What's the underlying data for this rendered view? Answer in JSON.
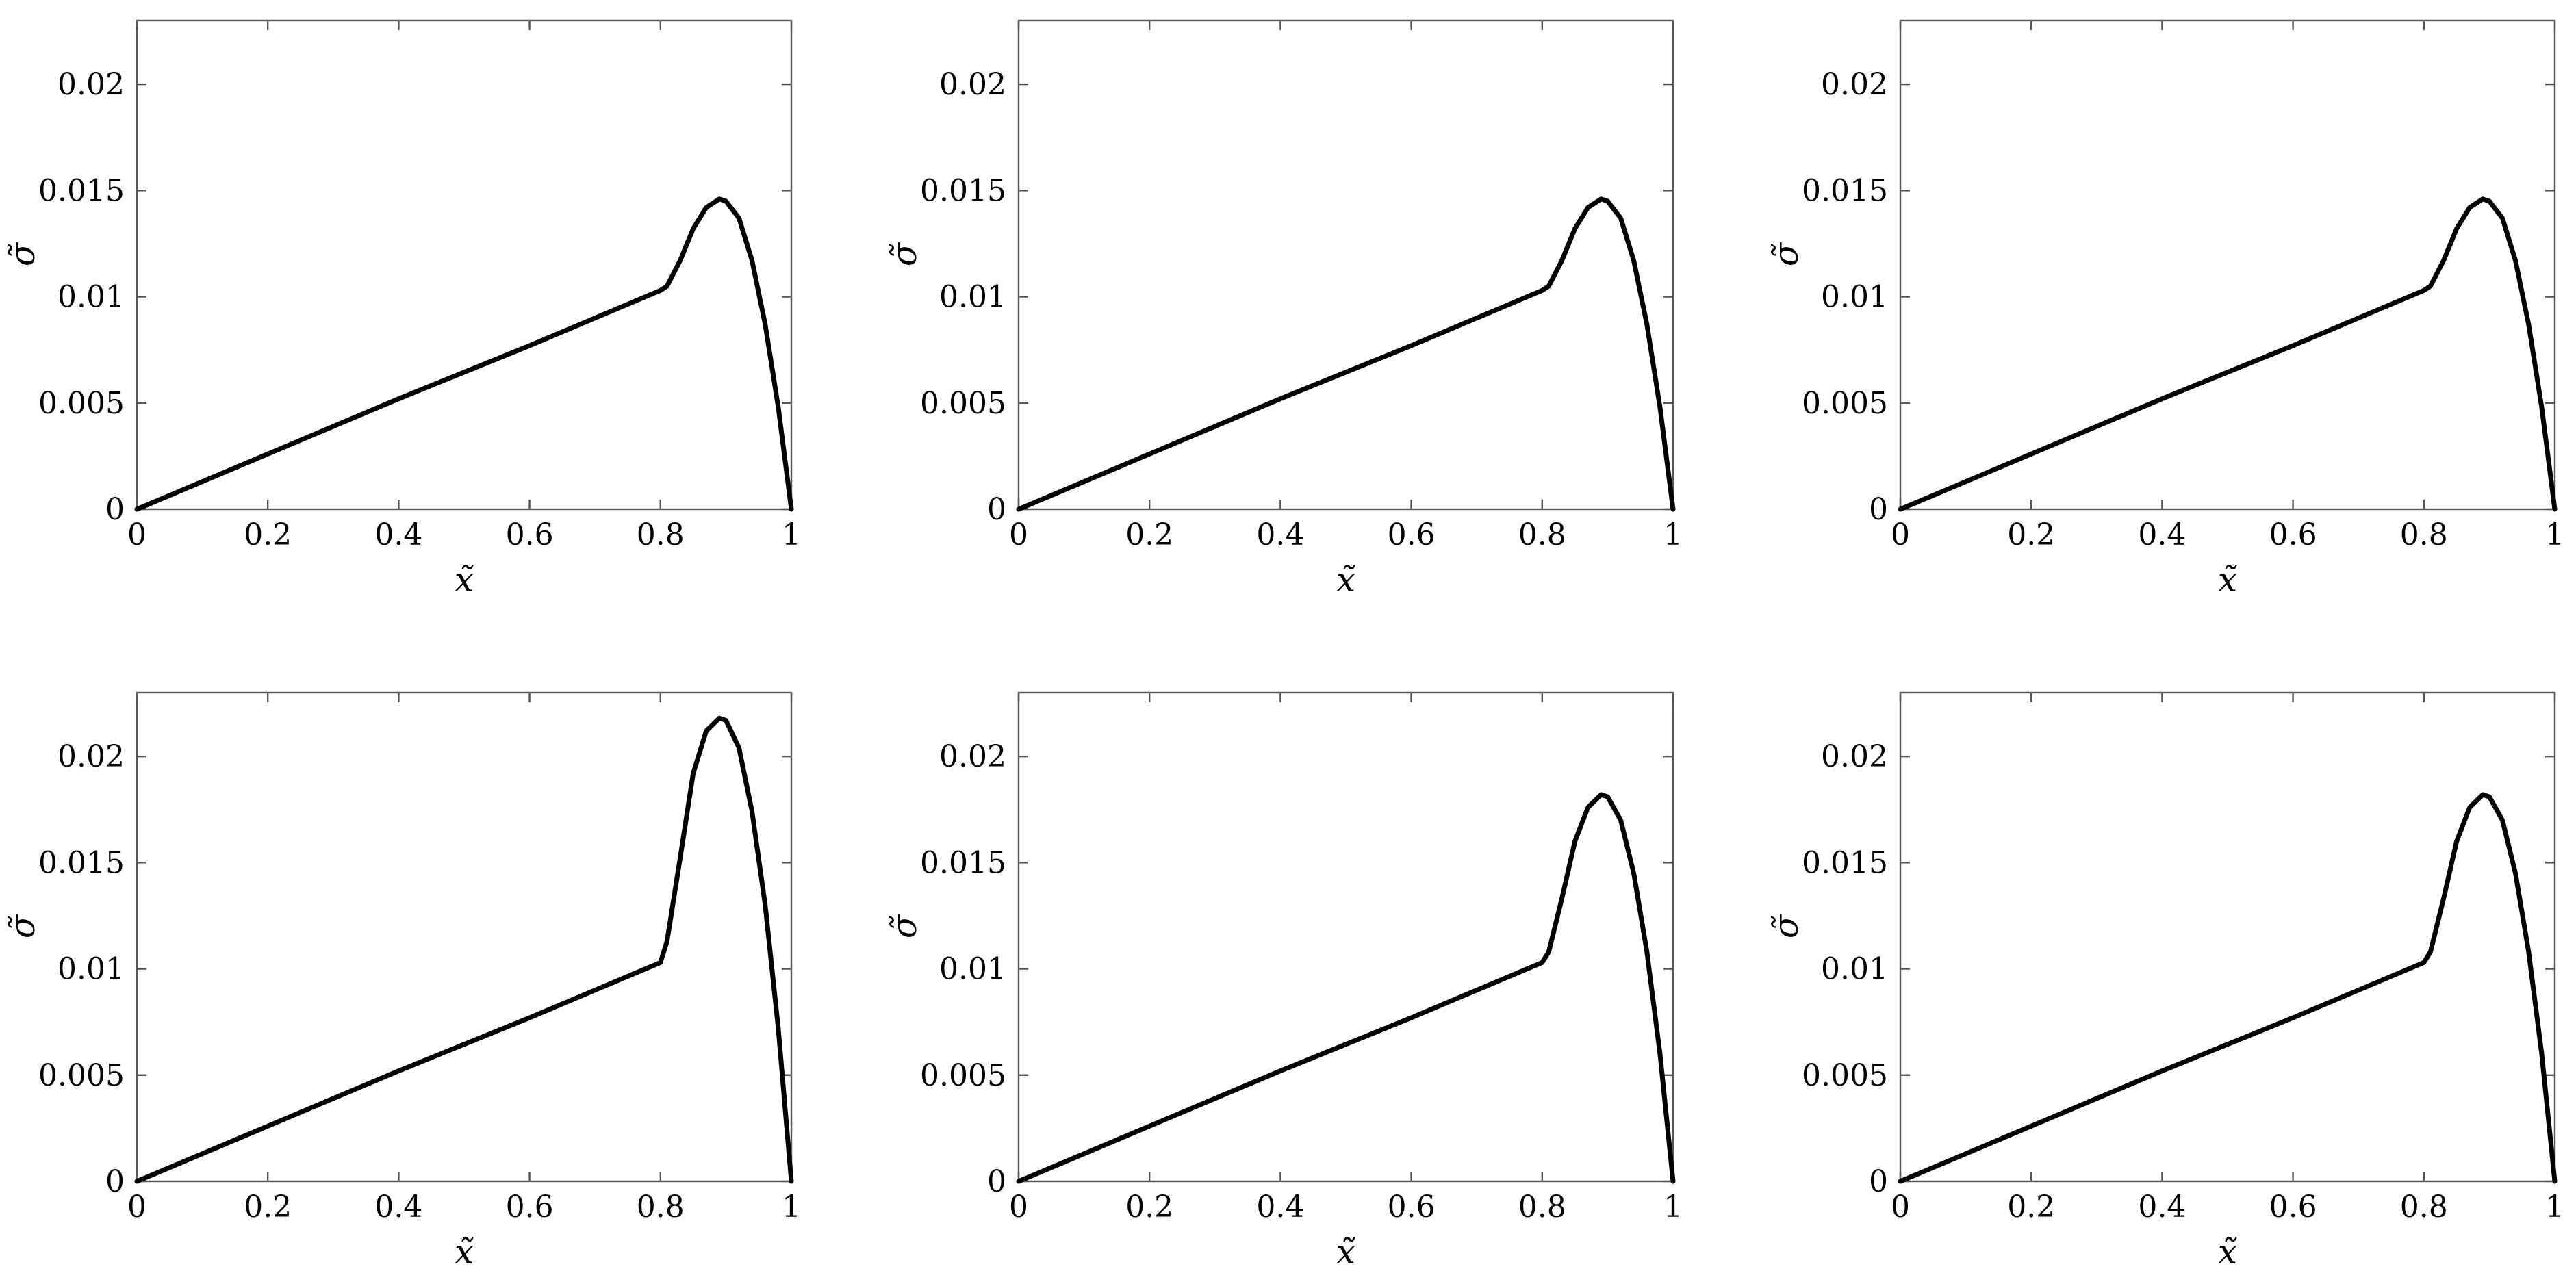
{
  "chart_data": [
    {
      "type": "line",
      "xlabel": "x̃",
      "ylabel": "σ̃",
      "xlim": [
        0,
        1
      ],
      "ylim": [
        0,
        0.023
      ],
      "xticks": [
        "0",
        "0.2",
        "0.4",
        "0.6",
        "0.8",
        "1"
      ],
      "yticks": [
        "0",
        "0.005",
        "0.01",
        "0.015",
        "0.02"
      ],
      "grid": false,
      "series": [
        {
          "x": [
            0,
            0.2,
            0.4,
            0.6,
            0.8,
            0.81,
            0.83,
            0.85,
            0.87,
            0.89,
            0.9,
            0.92,
            0.94,
            0.96,
            0.98,
            1.0
          ],
          "y": [
            0,
            0.0026,
            0.0052,
            0.0077,
            0.0103,
            0.0105,
            0.0117,
            0.0132,
            0.0142,
            0.0146,
            0.0145,
            0.0137,
            0.0117,
            0.0087,
            0.0048,
            0
          ]
        }
      ]
    },
    {
      "type": "line",
      "xlabel": "x̃",
      "ylabel": "σ̃",
      "xlim": [
        0,
        1
      ],
      "ylim": [
        0,
        0.023
      ],
      "xticks": [
        "0",
        "0.2",
        "0.4",
        "0.6",
        "0.8",
        "1"
      ],
      "yticks": [
        "0",
        "0.005",
        "0.01",
        "0.015",
        "0.02"
      ],
      "grid": false,
      "series": [
        {
          "x": [
            0,
            0.2,
            0.4,
            0.6,
            0.8,
            0.81,
            0.83,
            0.85,
            0.87,
            0.89,
            0.9,
            0.92,
            0.94,
            0.96,
            0.98,
            1.0
          ],
          "y": [
            0,
            0.0026,
            0.0052,
            0.0077,
            0.0103,
            0.0105,
            0.0117,
            0.0132,
            0.0142,
            0.0146,
            0.0145,
            0.0137,
            0.0117,
            0.0087,
            0.0048,
            0
          ]
        }
      ]
    },
    {
      "type": "line",
      "xlabel": "x̃",
      "ylabel": "σ̃",
      "xlim": [
        0,
        1
      ],
      "ylim": [
        0,
        0.023
      ],
      "xticks": [
        "0",
        "0.2",
        "0.4",
        "0.6",
        "0.8",
        "1"
      ],
      "yticks": [
        "0",
        "0.005",
        "0.01",
        "0.015",
        "0.02"
      ],
      "grid": false,
      "series": [
        {
          "x": [
            0,
            0.2,
            0.4,
            0.6,
            0.8,
            0.81,
            0.83,
            0.85,
            0.87,
            0.89,
            0.9,
            0.92,
            0.94,
            0.96,
            0.98,
            1.0
          ],
          "y": [
            0,
            0.0026,
            0.0052,
            0.0077,
            0.0103,
            0.0105,
            0.0117,
            0.0132,
            0.0142,
            0.0146,
            0.0145,
            0.0137,
            0.0117,
            0.0087,
            0.0048,
            0
          ]
        }
      ]
    },
    {
      "type": "line",
      "xlabel": "x̃",
      "ylabel": "σ̃",
      "xlim": [
        0,
        1
      ],
      "ylim": [
        0,
        0.023
      ],
      "xticks": [
        "0",
        "0.2",
        "0.4",
        "0.6",
        "0.8",
        "1"
      ],
      "yticks": [
        "0",
        "0.005",
        "0.01",
        "0.015",
        "0.02"
      ],
      "grid": false,
      "series": [
        {
          "x": [
            0,
            0.2,
            0.4,
            0.6,
            0.8,
            0.81,
            0.83,
            0.85,
            0.87,
            0.89,
            0.9,
            0.92,
            0.94,
            0.96,
            0.98,
            1.0
          ],
          "y": [
            0,
            0.0026,
            0.0052,
            0.0077,
            0.0103,
            0.0113,
            0.0152,
            0.0192,
            0.0212,
            0.0218,
            0.0217,
            0.0204,
            0.0174,
            0.013,
            0.0072,
            0
          ]
        }
      ]
    },
    {
      "type": "line",
      "xlabel": "x̃",
      "ylabel": "σ̃",
      "xlim": [
        0,
        1
      ],
      "ylim": [
        0,
        0.023
      ],
      "xticks": [
        "0",
        "0.2",
        "0.4",
        "0.6",
        "0.8",
        "1"
      ],
      "yticks": [
        "0",
        "0.005",
        "0.01",
        "0.015",
        "0.02"
      ],
      "grid": false,
      "series": [
        {
          "x": [
            0,
            0.2,
            0.4,
            0.6,
            0.8,
            0.81,
            0.83,
            0.85,
            0.87,
            0.89,
            0.9,
            0.92,
            0.94,
            0.96,
            0.98,
            1.0
          ],
          "y": [
            0,
            0.0026,
            0.0052,
            0.0077,
            0.0103,
            0.0108,
            0.0133,
            0.016,
            0.0176,
            0.0182,
            0.0181,
            0.017,
            0.0145,
            0.0108,
            0.006,
            0
          ]
        }
      ]
    },
    {
      "type": "line",
      "xlabel": "x̃",
      "ylabel": "σ̃",
      "xlim": [
        0,
        1
      ],
      "ylim": [
        0,
        0.023
      ],
      "xticks": [
        "0",
        "0.2",
        "0.4",
        "0.6",
        "0.8",
        "1"
      ],
      "yticks": [
        "0",
        "0.005",
        "0.01",
        "0.015",
        "0.02"
      ],
      "grid": false,
      "series": [
        {
          "x": [
            0,
            0.2,
            0.4,
            0.6,
            0.8,
            0.81,
            0.83,
            0.85,
            0.87,
            0.89,
            0.9,
            0.92,
            0.94,
            0.96,
            0.98,
            1.0
          ],
          "y": [
            0,
            0.0026,
            0.0052,
            0.0077,
            0.0103,
            0.0108,
            0.0133,
            0.016,
            0.0176,
            0.0182,
            0.0181,
            0.017,
            0.0145,
            0.0108,
            0.006,
            0
          ]
        }
      ]
    }
  ]
}
